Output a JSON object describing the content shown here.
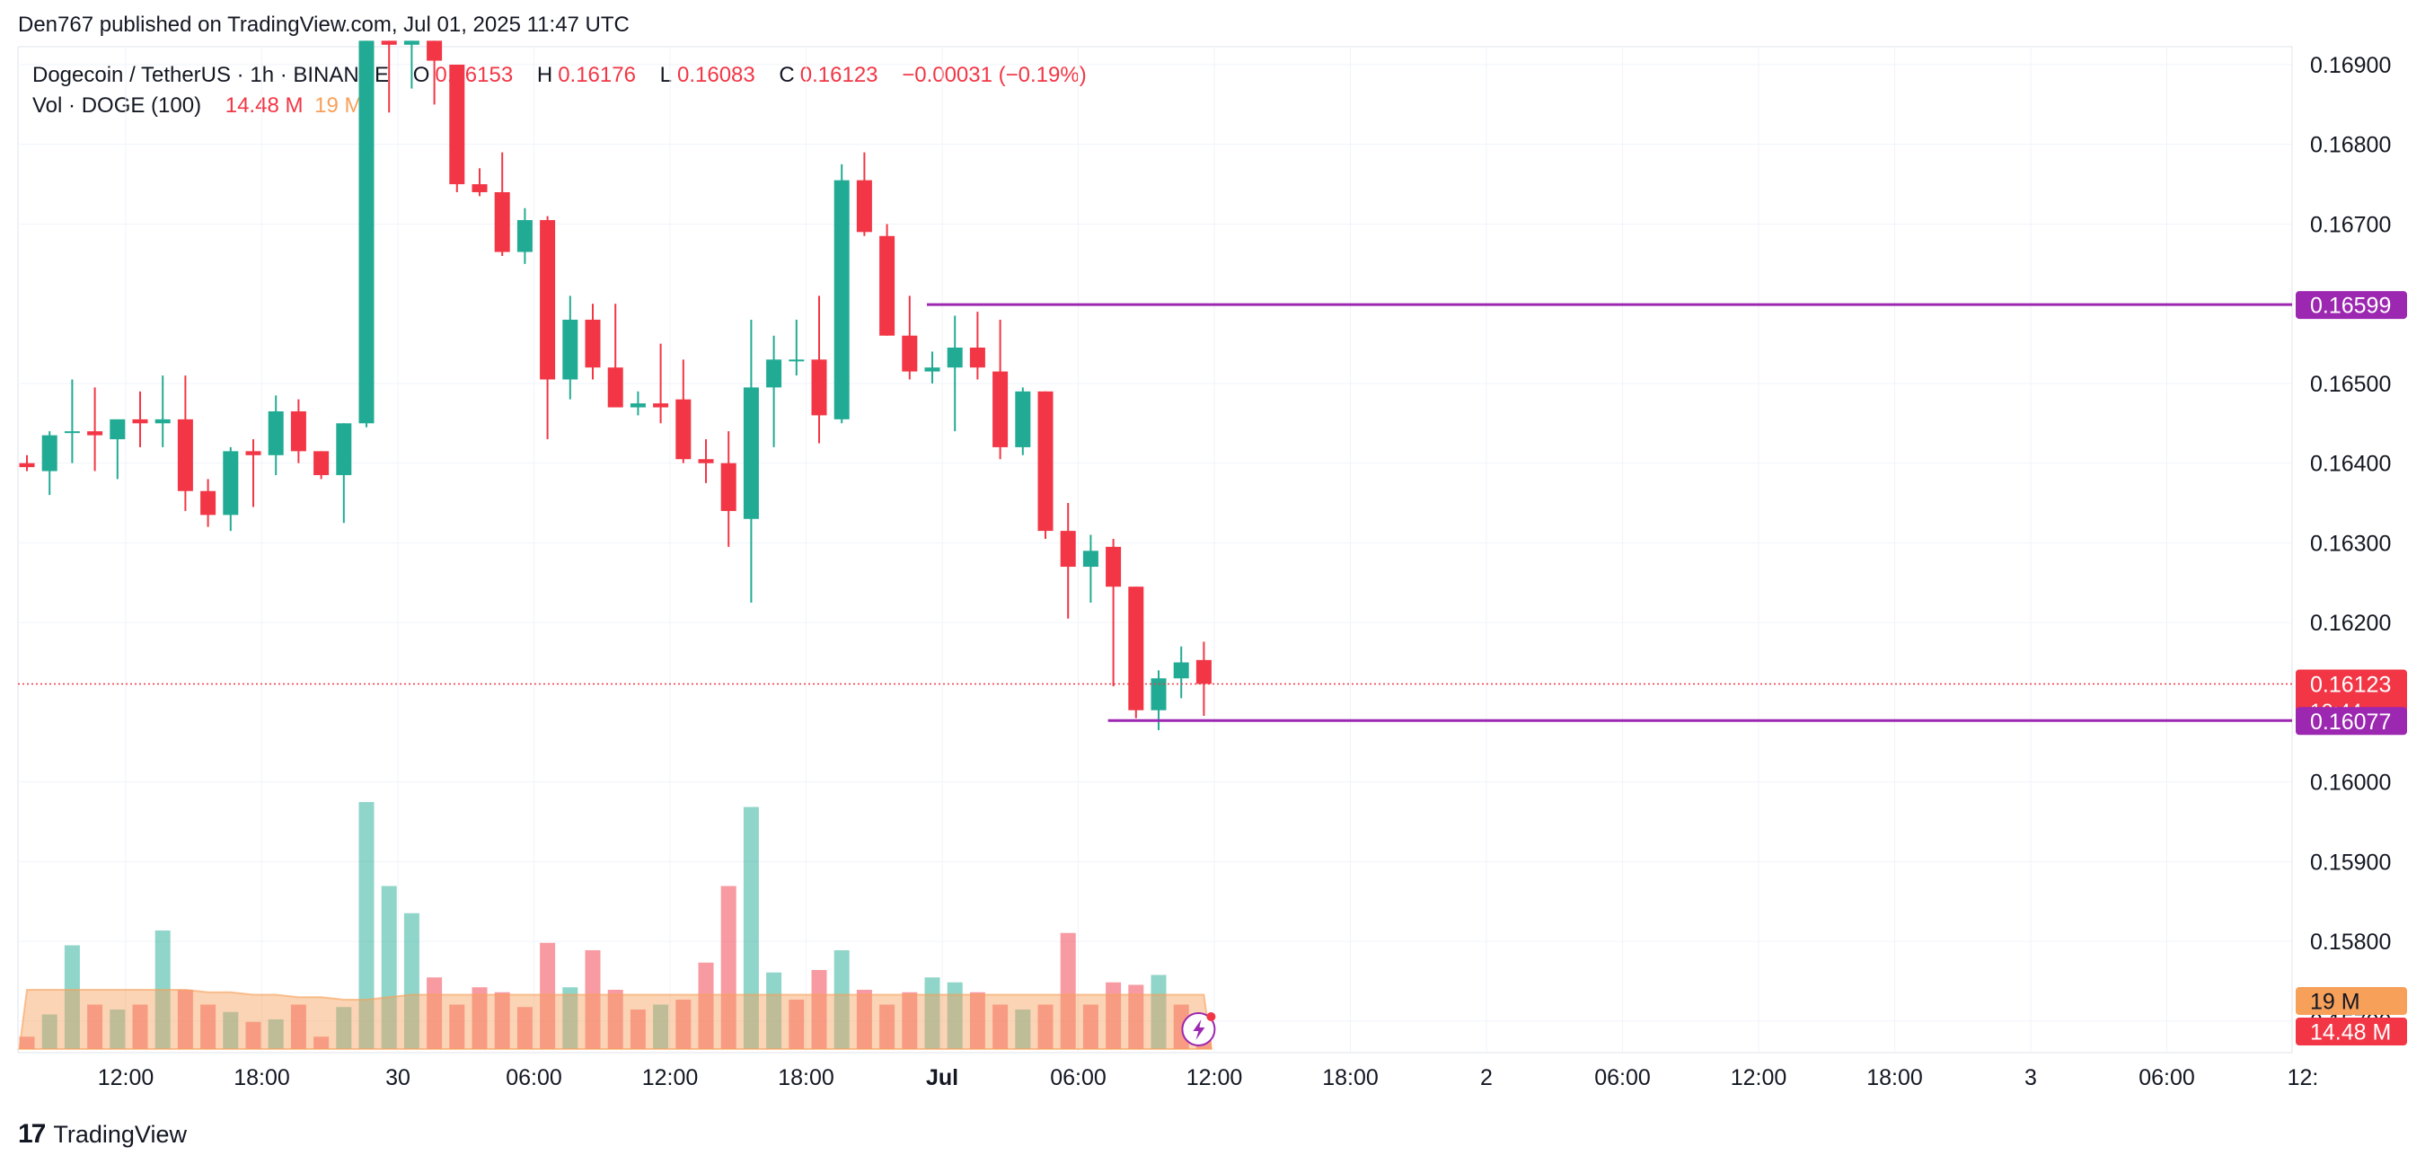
{
  "header": {
    "published": "Den767 published on TradingView.com, Jul 01, 2025 11:47 UTC"
  },
  "legend": {
    "symbol": "Dogecoin / TetherUS · 1h · BINANCE",
    "o_label": "O",
    "o_value": "0.16153",
    "h_label": "H",
    "h_value": "0.16176",
    "l_label": "L",
    "l_value": "0.16083",
    "c_label": "C",
    "c_value": "0.16123",
    "change": "−0.00031 (−0.19%)",
    "vol_label": "Vol · DOGE (100)",
    "vol_value": "14.48 M",
    "vol_ma_value": "19 M"
  },
  "footer": {
    "brand": "TradingView",
    "logo": "17"
  },
  "colors": {
    "up": "#22ab94",
    "down": "#f23645",
    "level_line": "#9c27b0",
    "grid": "#f0f3fa",
    "price_line": "#f23645",
    "vol_up": "#22ab94",
    "vol_down": "#f23645",
    "vol_ma": "#f7a05a"
  },
  "chart_data": {
    "type": "candlestick",
    "title": "Dogecoin / TetherUS · 1h · BINANCE",
    "y_axis": {
      "ticks": [
        "0.16900",
        "0.16800",
        "0.16700",
        "0.16500",
        "0.16400",
        "0.16300",
        "0.16200",
        "0.16000",
        "0.15900",
        "0.15800",
        "0.15700"
      ],
      "ylim": [
        0.156,
        0.1693
      ],
      "position": "right"
    },
    "x_axis": {
      "ticks": [
        "12:00",
        "18:00",
        "30",
        "06:00",
        "12:00",
        "18:00",
        "Jul",
        "06:00",
        "12:00",
        "18:00",
        "2",
        "06:00",
        "12:00",
        "18:00",
        "3",
        "06:00",
        "12:"
      ]
    },
    "grid": true,
    "price_labels": {
      "resistance": "0.16599",
      "support": "0.16077",
      "last_price": "0.16123",
      "countdown": "12:44",
      "vol_ma": "19 M",
      "vol": "14.48 M"
    },
    "levels": [
      {
        "price": 0.16599,
        "from_bar": 40
      },
      {
        "price": 0.16077,
        "from_bar": 48
      }
    ],
    "last_price": 0.16123,
    "candles": [
      {
        "o": 0.164,
        "h": 0.1641,
        "l": 0.1639,
        "c": 0.16395
      },
      {
        "o": 0.1639,
        "h": 0.1644,
        "l": 0.1636,
        "c": 0.16435
      },
      {
        "o": 0.1644,
        "h": 0.16505,
        "l": 0.164,
        "c": 0.1644
      },
      {
        "o": 0.1644,
        "h": 0.16495,
        "l": 0.1639,
        "c": 0.16435
      },
      {
        "o": 0.1643,
        "h": 0.1645,
        "l": 0.1638,
        "c": 0.16455
      },
      {
        "o": 0.16455,
        "h": 0.1649,
        "l": 0.1642,
        "c": 0.1645
      },
      {
        "o": 0.1645,
        "h": 0.1651,
        "l": 0.1642,
        "c": 0.16455
      },
      {
        "o": 0.16455,
        "h": 0.1651,
        "l": 0.1634,
        "c": 0.16365
      },
      {
        "o": 0.16365,
        "h": 0.1638,
        "l": 0.1632,
        "c": 0.16335
      },
      {
        "o": 0.16335,
        "h": 0.1642,
        "l": 0.16315,
        "c": 0.16415
      },
      {
        "o": 0.16415,
        "h": 0.1643,
        "l": 0.16345,
        "c": 0.1641
      },
      {
        "o": 0.1641,
        "h": 0.16485,
        "l": 0.16385,
        "c": 0.16465
      },
      {
        "o": 0.16465,
        "h": 0.1648,
        "l": 0.164,
        "c": 0.16415
      },
      {
        "o": 0.16415,
        "h": 0.16415,
        "l": 0.1638,
        "c": 0.16385
      },
      {
        "o": 0.16385,
        "h": 0.1645,
        "l": 0.16325,
        "c": 0.1645
      },
      {
        "o": 0.1645,
        "h": 0.1693,
        "l": 0.16445,
        "c": 0.1693
      },
      {
        "o": 0.1693,
        "h": 0.1693,
        "l": 0.1684,
        "c": 0.16925
      },
      {
        "o": 0.16925,
        "h": 0.1693,
        "l": 0.1687,
        "c": 0.1693
      },
      {
        "o": 0.1693,
        "h": 0.1693,
        "l": 0.1685,
        "c": 0.16905
      },
      {
        "o": 0.169,
        "h": 0.169,
        "l": 0.1674,
        "c": 0.1675
      },
      {
        "o": 0.1675,
        "h": 0.1677,
        "l": 0.16735,
        "c": 0.1674
      },
      {
        "o": 0.1674,
        "h": 0.1679,
        "l": 0.1666,
        "c": 0.16665
      },
      {
        "o": 0.16665,
        "h": 0.1672,
        "l": 0.1665,
        "c": 0.16705
      },
      {
        "o": 0.16705,
        "h": 0.1671,
        "l": 0.1643,
        "c": 0.16505
      },
      {
        "o": 0.16505,
        "h": 0.1661,
        "l": 0.1648,
        "c": 0.1658
      },
      {
        "o": 0.1658,
        "h": 0.166,
        "l": 0.16505,
        "c": 0.1652
      },
      {
        "o": 0.1652,
        "h": 0.166,
        "l": 0.1647,
        "c": 0.1647
      },
      {
        "o": 0.1647,
        "h": 0.1649,
        "l": 0.1646,
        "c": 0.16475
      },
      {
        "o": 0.16475,
        "h": 0.1655,
        "l": 0.1645,
        "c": 0.1647
      },
      {
        "o": 0.1648,
        "h": 0.1653,
        "l": 0.164,
        "c": 0.16405
      },
      {
        "o": 0.16405,
        "h": 0.1643,
        "l": 0.16375,
        "c": 0.164
      },
      {
        "o": 0.164,
        "h": 0.1644,
        "l": 0.16295,
        "c": 0.1634
      },
      {
        "o": 0.1633,
        "h": 0.1658,
        "l": 0.16225,
        "c": 0.16495
      },
      {
        "o": 0.16495,
        "h": 0.1656,
        "l": 0.1642,
        "c": 0.1653
      },
      {
        "o": 0.1653,
        "h": 0.1658,
        "l": 0.1651,
        "c": 0.1653
      },
      {
        "o": 0.1653,
        "h": 0.1661,
        "l": 0.16425,
        "c": 0.1646
      },
      {
        "o": 0.16455,
        "h": 0.16775,
        "l": 0.1645,
        "c": 0.16755
      },
      {
        "o": 0.16755,
        "h": 0.1679,
        "l": 0.16685,
        "c": 0.1669
      },
      {
        "o": 0.16685,
        "h": 0.167,
        "l": 0.1656,
        "c": 0.1656
      },
      {
        "o": 0.1656,
        "h": 0.1661,
        "l": 0.16505,
        "c": 0.16515
      },
      {
        "o": 0.16515,
        "h": 0.1654,
        "l": 0.165,
        "c": 0.1652
      },
      {
        "o": 0.1652,
        "h": 0.16585,
        "l": 0.1644,
        "c": 0.16545
      },
      {
        "o": 0.16545,
        "h": 0.1659,
        "l": 0.16505,
        "c": 0.1652
      },
      {
        "o": 0.16515,
        "h": 0.1658,
        "l": 0.16405,
        "c": 0.1642
      },
      {
        "o": 0.1642,
        "h": 0.16495,
        "l": 0.1641,
        "c": 0.1649
      },
      {
        "o": 0.1649,
        "h": 0.1649,
        "l": 0.16305,
        "c": 0.16315
      },
      {
        "o": 0.16315,
        "h": 0.1635,
        "l": 0.16205,
        "c": 0.1627
      },
      {
        "o": 0.1627,
        "h": 0.1631,
        "l": 0.16225,
        "c": 0.1629
      },
      {
        "o": 0.16295,
        "h": 0.16305,
        "l": 0.1612,
        "c": 0.16245
      },
      {
        "o": 0.16245,
        "h": 0.16245,
        "l": 0.1608,
        "c": 0.1609
      },
      {
        "o": 0.1609,
        "h": 0.1614,
        "l": 0.16065,
        "c": 0.1613
      },
      {
        "o": 0.1613,
        "h": 0.1617,
        "l": 0.16105,
        "c": 0.1615
      },
      {
        "o": 0.16153,
        "h": 0.16176,
        "l": 0.16083,
        "c": 0.16123
      }
    ],
    "volume": [
      {
        "v": 0.05,
        "up": false
      },
      {
        "v": 0.14,
        "up": true
      },
      {
        "v": 0.42,
        "up": true
      },
      {
        "v": 0.18,
        "up": false
      },
      {
        "v": 0.16,
        "up": true
      },
      {
        "v": 0.18,
        "up": false
      },
      {
        "v": 0.48,
        "up": true
      },
      {
        "v": 0.24,
        "up": false
      },
      {
        "v": 0.18,
        "up": false
      },
      {
        "v": 0.15,
        "up": true
      },
      {
        "v": 0.11,
        "up": false
      },
      {
        "v": 0.12,
        "up": true
      },
      {
        "v": 0.18,
        "up": false
      },
      {
        "v": 0.05,
        "up": false
      },
      {
        "v": 0.17,
        "up": true
      },
      {
        "v": 1.0,
        "up": true
      },
      {
        "v": 0.66,
        "up": true
      },
      {
        "v": 0.55,
        "up": true
      },
      {
        "v": 0.29,
        "up": false
      },
      {
        "v": 0.18,
        "up": false
      },
      {
        "v": 0.25,
        "up": false
      },
      {
        "v": 0.23,
        "up": false
      },
      {
        "v": 0.17,
        "up": false
      },
      {
        "v": 0.43,
        "up": false
      },
      {
        "v": 0.25,
        "up": true
      },
      {
        "v": 0.4,
        "up": false
      },
      {
        "v": 0.24,
        "up": false
      },
      {
        "v": 0.16,
        "up": false
      },
      {
        "v": 0.18,
        "up": true
      },
      {
        "v": 0.2,
        "up": false
      },
      {
        "v": 0.35,
        "up": false
      },
      {
        "v": 0.66,
        "up": false
      },
      {
        "v": 0.98,
        "up": true
      },
      {
        "v": 0.31,
        "up": true
      },
      {
        "v": 0.2,
        "up": false
      },
      {
        "v": 0.32,
        "up": false
      },
      {
        "v": 0.4,
        "up": true
      },
      {
        "v": 0.24,
        "up": false
      },
      {
        "v": 0.18,
        "up": false
      },
      {
        "v": 0.23,
        "up": false
      },
      {
        "v": 0.29,
        "up": true
      },
      {
        "v": 0.27,
        "up": true
      },
      {
        "v": 0.23,
        "up": false
      },
      {
        "v": 0.18,
        "up": false
      },
      {
        "v": 0.16,
        "up": true
      },
      {
        "v": 0.18,
        "up": false
      },
      {
        "v": 0.47,
        "up": false
      },
      {
        "v": 0.18,
        "up": false
      },
      {
        "v": 0.27,
        "up": false
      },
      {
        "v": 0.26,
        "up": false
      },
      {
        "v": 0.3,
        "up": true
      },
      {
        "v": 0.18,
        "up": false
      },
      {
        "v": 0.14,
        "up": false
      }
    ],
    "volume_ma": [
      0.24,
      0.24,
      0.24,
      0.24,
      0.24,
      0.24,
      0.24,
      0.24,
      0.23,
      0.23,
      0.22,
      0.22,
      0.21,
      0.21,
      0.2,
      0.2,
      0.21,
      0.22,
      0.22,
      0.22,
      0.22,
      0.22,
      0.22,
      0.22,
      0.22,
      0.22,
      0.22,
      0.22,
      0.22,
      0.22,
      0.22,
      0.22,
      0.22,
      0.22,
      0.22,
      0.22,
      0.22,
      0.22,
      0.22,
      0.22,
      0.22,
      0.22,
      0.22,
      0.22,
      0.22,
      0.22,
      0.22,
      0.22,
      0.22,
      0.22,
      0.22,
      0.22,
      0.22
    ]
  }
}
